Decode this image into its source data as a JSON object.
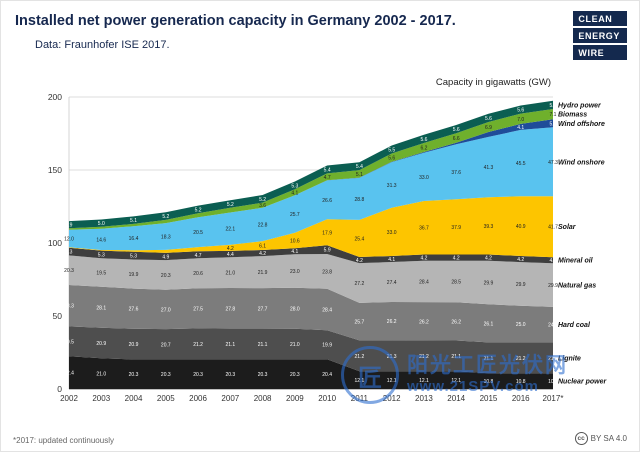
{
  "header": {
    "title": "Installed net power generation capacity in Germany 2002 - 2017.",
    "subtitle": "Data: Fraunhofer ISE 2017.",
    "logo": {
      "lines": [
        "CLEAN",
        "ENERGY",
        "WIRE"
      ]
    }
  },
  "chart_data": {
    "type": "area",
    "stacked": true,
    "title": "Capacity in gigawatts (GW)",
    "xlabel": "",
    "ylabel": "Capacity in gigawatts (GW)",
    "ylim": [
      0,
      200
    ],
    "yticks": [
      0,
      50,
      100,
      150,
      200
    ],
    "grid": true,
    "legend_position": "right",
    "x": [
      "2002",
      "2003",
      "2004",
      "2005",
      "2006",
      "2007",
      "2008",
      "2009",
      "2010",
      "2011",
      "2012",
      "2013",
      "2014",
      "2015",
      "2016",
      "2017*"
    ],
    "series": [
      {
        "name": "Nuclear power",
        "color": "#1c1c1c",
        "values": [
          22.4,
          21.0,
          20.3,
          20.3,
          20.3,
          20.3,
          20.3,
          20.3,
          20.4,
          12.1,
          12.1,
          12.1,
          12.1,
          10.8,
          10.8,
          10.8
        ]
      },
      {
        "name": "Lignite",
        "color": "#4e4e4e",
        "values": [
          20.5,
          20.9,
          20.9,
          20.7,
          21.2,
          21.1,
          21.1,
          21.0,
          19.9,
          21.2,
          21.3,
          21.2,
          21.1,
          21.1,
          21.2,
          21.2
        ]
      },
      {
        "name": "Hard coal",
        "color": "#7c7c7c",
        "values": [
          28.3,
          28.1,
          27.6,
          27.0,
          27.5,
          27.8,
          27.7,
          28.0,
          28.4,
          25.7,
          26.2,
          26.2,
          26.2,
          26.1,
          25.0,
          24.2
        ]
      },
      {
        "name": "Natural gas",
        "color": "#b5b5b5",
        "values": [
          20.3,
          19.5,
          19.9,
          20.3,
          20.6,
          21.0,
          21.9,
          23.0,
          23.8,
          27.2,
          27.4,
          28.4,
          28.5,
          29.9,
          29.9,
          29.9
        ]
      },
      {
        "name": "Mineral oil",
        "color": "#3e3e3e",
        "values": [
          5.3,
          5.3,
          5.3,
          4.9,
          4.7,
          4.4,
          4.2,
          4.1,
          5.9,
          4.2,
          4.1,
          4.2,
          4.2,
          4.2,
          4.2,
          4.2
        ]
      },
      {
        "name": "Solar",
        "color": "#fdc500",
        "values": [
          0.3,
          0.4,
          1.1,
          2.1,
          2.9,
          4.2,
          6.1,
          10.6,
          17.9,
          25.4,
          33.0,
          36.7,
          37.9,
          39.3,
          40.9,
          41.7
        ]
      },
      {
        "name": "Wind onshore",
        "color": "#59c3ef",
        "values": [
          12.0,
          14.6,
          16.4,
          18.3,
          20.5,
          22.1,
          22.8,
          25.7,
          26.6,
          28.8,
          31.3,
          33.0,
          37.6,
          41.3,
          45.5,
          47.3
        ]
      },
      {
        "name": "Wind offshore",
        "color": "#1f4c99",
        "values": [
          0.0,
          0.0,
          0.0,
          0.0,
          0.0,
          0.0,
          0.0,
          0.0,
          0.1,
          0.2,
          0.3,
          0.5,
          1.0,
          3.3,
          4.1,
          5.4
        ]
      },
      {
        "name": "Biomass",
        "color": "#6fb02c",
        "values": [
          1.0,
          1.3,
          1.6,
          2.2,
          2.7,
          3.2,
          3.6,
          4.1,
          4.7,
          5.1,
          5.6,
          6.2,
          6.6,
          6.9,
          7.0,
          7.1
        ]
      },
      {
        "name": "Hydro power",
        "color": "#0b5e52",
        "values": [
          4.9,
          5.0,
          5.1,
          5.2,
          5.2,
          5.2,
          5.2,
          5.3,
          5.4,
          5.4,
          5.5,
          5.6,
          5.6,
          5.6,
          5.6,
          5.6
        ]
      }
    ]
  },
  "watermark": {
    "seal_glyph": "匠",
    "line1": "阳光工匠光伏网",
    "line2": "www.21SPV.com"
  },
  "footer": {
    "footnote": "*2017: updated continuously",
    "cc_label": "cc",
    "license": "BY SA 4.0"
  }
}
